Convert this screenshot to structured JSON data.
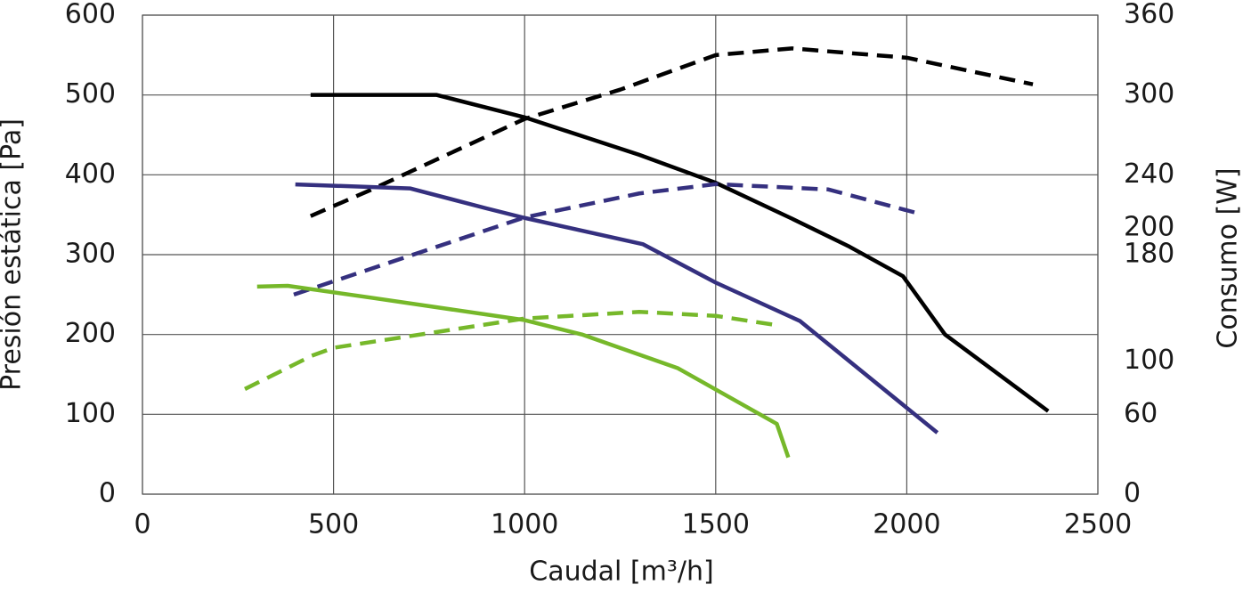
{
  "chart_data": {
    "type": "line",
    "xlabel": "Caudal [m³/h]",
    "ylabel": "Presión estática [Pa]",
    "y2label": "Consumo [W]",
    "xlim": [
      0,
      2500
    ],
    "xticks": [
      0,
      500,
      1000,
      1500,
      2000,
      2500
    ],
    "ylim": [
      0,
      600
    ],
    "yticks": [
      0,
      100,
      200,
      300,
      400,
      500,
      600
    ],
    "y2lim": [
      0,
      360
    ],
    "y2ticks": [
      0,
      60,
      100,
      180,
      200,
      240,
      300,
      360
    ],
    "grid": true,
    "series": [
      {
        "color": "#000000",
        "dash": false,
        "axis": "y",
        "x": [
          440,
          770,
          1000,
          1300,
          1500,
          1700,
          1850,
          1990,
          2100,
          2370
        ],
        "values": [
          500,
          500,
          472,
          425,
          390,
          345,
          310,
          273,
          200,
          104
        ]
      },
      {
        "color": "#000000",
        "dash": true,
        "axis": "y2",
        "x": [
          440,
          600,
          1000,
          1250,
          1500,
          1700,
          2000,
          2330
        ],
        "values": [
          209,
          229,
          282,
          304,
          330,
          335,
          328,
          308
        ]
      },
      {
        "color": "#35307f",
        "dash": false,
        "axis": "y",
        "x": [
          400,
          700,
          900,
          1000,
          1310,
          1500,
          1720,
          2080
        ],
        "values": [
          388,
          383,
          358,
          346,
          313,
          265,
          217,
          77
        ]
      },
      {
        "color": "#35307f",
        "dash": true,
        "axis": "y2",
        "x": [
          396,
          1000,
          1300,
          1500,
          1795,
          2030
        ],
        "values": [
          150,
          208,
          226,
          233,
          229,
          211
        ]
      },
      {
        "color": "#76b82a",
        "dash": false,
        "axis": "y",
        "x": [
          300,
          380,
          600,
          1000,
          1150,
          1400,
          1660,
          1690
        ],
        "values": [
          260,
          261,
          246,
          218,
          200,
          158,
          88,
          46
        ]
      },
      {
        "color": "#76b82a",
        "dash": true,
        "axis": "y2",
        "x": [
          268,
          443,
          500,
          1000,
          1300,
          1500,
          1660
        ],
        "values": [
          79,
          104,
          110,
          132,
          137,
          134,
          127
        ]
      }
    ]
  }
}
